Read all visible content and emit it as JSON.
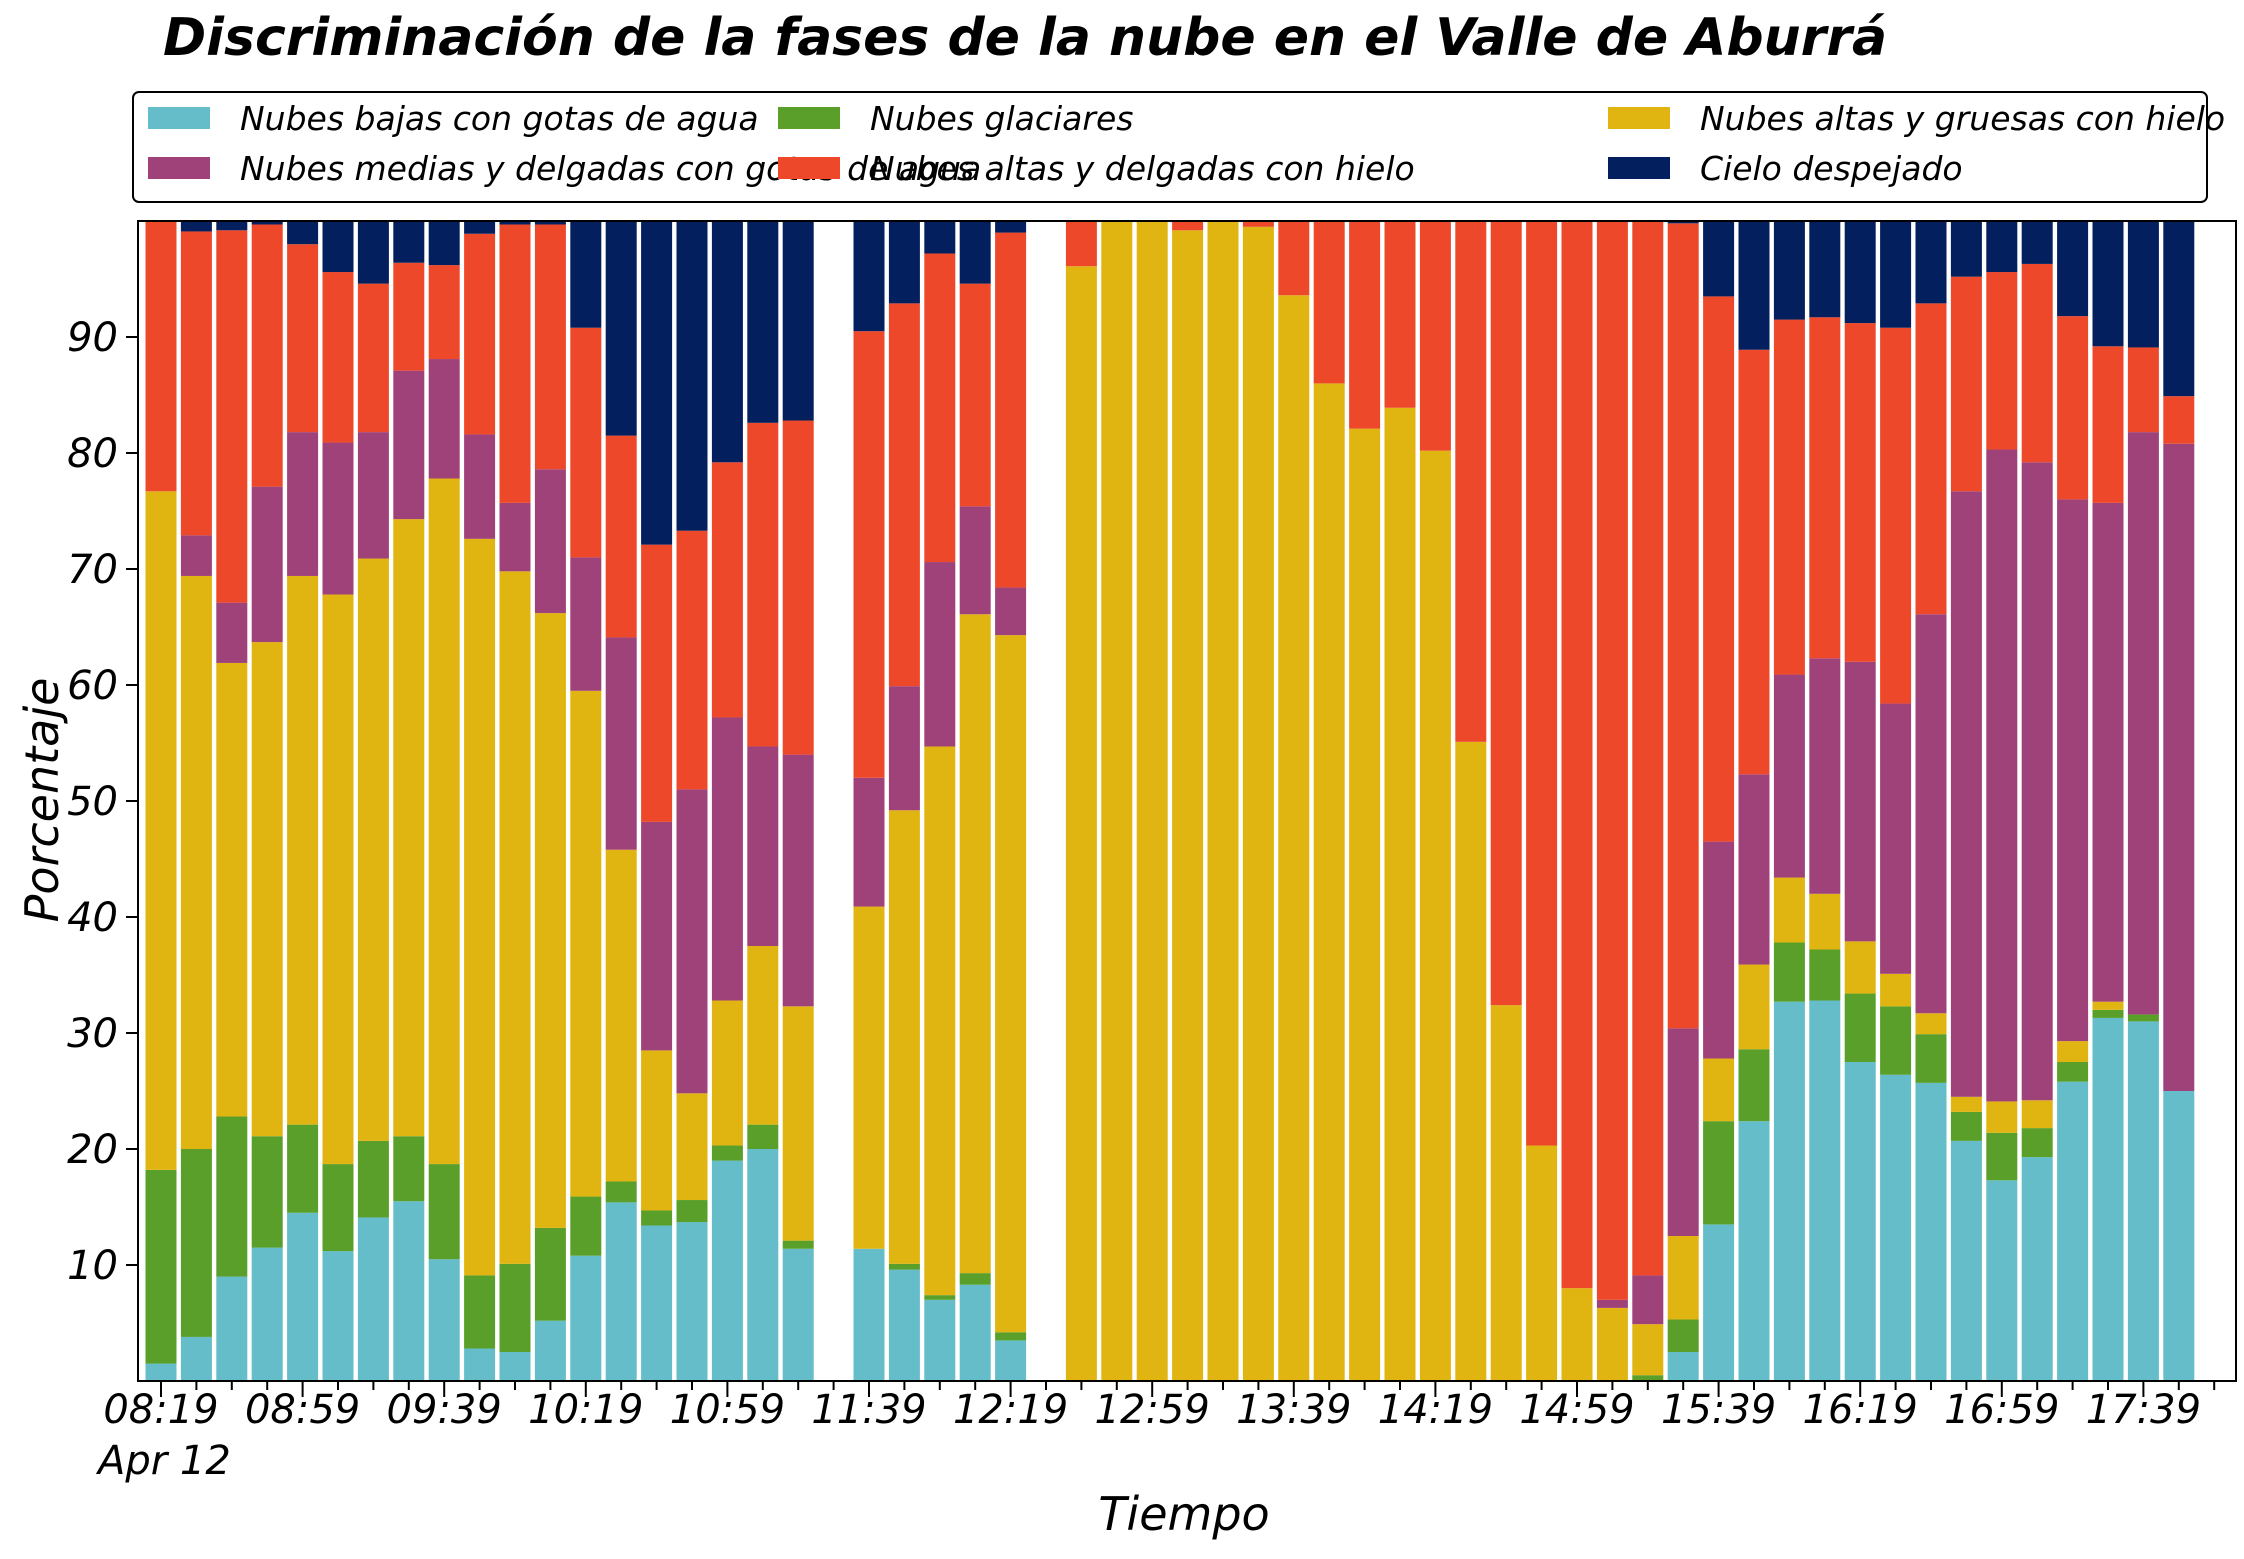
{
  "chart_data": {
    "type": "bar",
    "stacked": true,
    "title": "Discriminación de la fases de la nube en el Valle de Aburrá",
    "xlabel": "Tiempo",
    "ylabel": "Porcentaje",
    "ylim": [
      0,
      100
    ],
    "y_ticks": [
      10,
      20,
      30,
      40,
      50,
      60,
      70,
      80,
      90
    ],
    "x_tick_labels": [
      "08:19",
      "08:59",
      "09:39",
      "10:19",
      "10:59",
      "11:39",
      "12:19",
      "12:59",
      "13:39",
      "14:19",
      "14:59",
      "15:39",
      "16:19",
      "16:59",
      "17:39"
    ],
    "x_date_label": "Apr 12",
    "x_start": "08:19",
    "bin_minutes": 10,
    "legend_position": "top",
    "legend": [
      {
        "name": "Nubes bajas con gotas de agua",
        "color": "#64bdc8"
      },
      {
        "name": "Nubes glaciares",
        "color": "#5a9f2a"
      },
      {
        "name": "Nubes altas y gruesas con hielo",
        "color": "#e1b511"
      },
      {
        "name": "Nubes medias y delgadas con gotas de agua",
        "color": "#a0427a"
      },
      {
        "name": "Nubes altas y delgadas con hielo",
        "color": "#ee482b"
      },
      {
        "name": "Cielo despejado",
        "color": "#031f5e"
      }
    ],
    "stack_order": [
      0,
      1,
      2,
      3,
      4,
      5
    ],
    "bars": [
      {
        "time": "08:19",
        "values": [
          1.5,
          16.7,
          58.5,
          0,
          23.3,
          0
        ]
      },
      {
        "time": "08:29",
        "values": [
          3.8,
          16.2,
          49.4,
          3.5,
          26.2,
          0.9
        ]
      },
      {
        "time": "08:39",
        "values": [
          9.0,
          13.8,
          39.1,
          5.2,
          32.1,
          0.8
        ]
      },
      {
        "time": "08:49",
        "values": [
          11.5,
          9.6,
          42.6,
          13.4,
          22.6,
          0.3
        ]
      },
      {
        "time": "08:59",
        "values": [
          14.5,
          7.6,
          47.3,
          12.4,
          16.2,
          2.0
        ]
      },
      {
        "time": "09:09",
        "values": [
          11.2,
          7.5,
          49.1,
          13.1,
          14.7,
          4.4
        ]
      },
      {
        "time": "09:19",
        "values": [
          14.1,
          6.6,
          50.2,
          10.9,
          12.8,
          5.4
        ]
      },
      {
        "time": "09:29",
        "values": [
          15.5,
          5.6,
          53.2,
          12.8,
          9.3,
          3.6
        ]
      },
      {
        "time": "09:39",
        "values": [
          10.5,
          8.2,
          59.1,
          10.3,
          8.1,
          3.8
        ]
      },
      {
        "time": "09:49",
        "values": [
          2.8,
          6.3,
          63.5,
          9.0,
          17.3,
          1.1
        ]
      },
      {
        "time": "09:59",
        "values": [
          2.5,
          7.6,
          59.7,
          5.9,
          24.0,
          0.3
        ]
      },
      {
        "time": "10:09",
        "values": [
          5.2,
          8.0,
          53.0,
          12.4,
          21.1,
          0.3
        ]
      },
      {
        "time": "10:19",
        "values": [
          10.8,
          5.1,
          43.6,
          11.5,
          19.8,
          9.2
        ]
      },
      {
        "time": "10:29",
        "values": [
          15.4,
          1.8,
          28.6,
          18.3,
          17.4,
          18.5
        ]
      },
      {
        "time": "10:39",
        "values": [
          13.4,
          1.3,
          13.8,
          19.7,
          23.9,
          27.9
        ]
      },
      {
        "time": "10:49",
        "values": [
          13.7,
          1.9,
          9.2,
          26.2,
          22.3,
          26.7
        ]
      },
      {
        "time": "10:59",
        "values": [
          19.0,
          1.3,
          12.5,
          24.4,
          22.0,
          20.8
        ]
      },
      {
        "time": "11:09",
        "values": [
          20.0,
          2.1,
          15.4,
          17.2,
          27.9,
          17.4
        ]
      },
      {
        "time": "11:19",
        "values": [
          11.4,
          0.7,
          20.2,
          21.7,
          28.8,
          17.2
        ]
      },
      {
        "time": "11:29",
        "values": null
      },
      {
        "time": "11:39",
        "values": [
          11.4,
          0,
          29.5,
          11.1,
          38.5,
          9.5
        ]
      },
      {
        "time": "11:49",
        "values": [
          9.6,
          0.5,
          39.1,
          10.7,
          33.0,
          7.1
        ]
      },
      {
        "time": "11:59",
        "values": [
          7.0,
          0.4,
          47.3,
          15.9,
          26.6,
          2.8
        ]
      },
      {
        "time": "12:09",
        "values": [
          8.3,
          1.0,
          56.8,
          9.3,
          19.2,
          5.4
        ]
      },
      {
        "time": "12:19",
        "values": [
          3.5,
          0.7,
          60.1,
          4.1,
          30.6,
          1.0
        ]
      },
      {
        "time": "12:29",
        "values": null
      },
      {
        "time": "12:39",
        "values": [
          0,
          0,
          96.1,
          0,
          3.9,
          0
        ]
      },
      {
        "time": "12:49",
        "values": [
          0,
          0,
          100,
          0,
          0,
          0
        ]
      },
      {
        "time": "12:59",
        "values": [
          0,
          0,
          100,
          0,
          0,
          0
        ]
      },
      {
        "time": "13:09",
        "values": [
          0,
          0,
          99.2,
          0,
          0.8,
          0
        ]
      },
      {
        "time": "13:19",
        "values": [
          0,
          0,
          100,
          0,
          0,
          0
        ]
      },
      {
        "time": "13:29",
        "values": [
          0,
          0,
          99.5,
          0,
          0.5,
          0
        ]
      },
      {
        "time": "13:39",
        "values": [
          0,
          0,
          93.6,
          0,
          6.4,
          0
        ]
      },
      {
        "time": "13:49",
        "values": [
          0,
          0,
          86.0,
          0,
          14.0,
          0
        ]
      },
      {
        "time": "13:59",
        "values": [
          0,
          0,
          82.1,
          0,
          17.9,
          0
        ]
      },
      {
        "time": "14:09",
        "values": [
          0,
          0,
          83.9,
          0,
          16.1,
          0
        ]
      },
      {
        "time": "14:19",
        "values": [
          0,
          0,
          80.2,
          0,
          19.8,
          0
        ]
      },
      {
        "time": "14:29",
        "values": [
          0,
          0,
          55.1,
          0,
          44.9,
          0
        ]
      },
      {
        "time": "14:39",
        "values": [
          0,
          0,
          32.4,
          0,
          67.6,
          0
        ]
      },
      {
        "time": "14:49",
        "values": [
          0,
          0,
          20.3,
          0,
          79.7,
          0
        ]
      },
      {
        "time": "14:59",
        "values": [
          0,
          0,
          8.0,
          0,
          92.0,
          0
        ]
      },
      {
        "time": "15:09",
        "values": [
          0,
          0,
          6.3,
          0.7,
          93.0,
          0
        ]
      },
      {
        "time": "15:19",
        "values": [
          0,
          0.5,
          4.4,
          4.2,
          90.9,
          0
        ]
      },
      {
        "time": "15:29",
        "values": [
          2.5,
          2.8,
          7.2,
          17.9,
          69.4,
          0.2
        ]
      },
      {
        "time": "15:39",
        "values": [
          13.5,
          8.9,
          5.4,
          18.7,
          47.0,
          6.5
        ]
      },
      {
        "time": "15:49",
        "values": [
          22.4,
          6.2,
          7.3,
          16.4,
          36.6,
          11.1
        ]
      },
      {
        "time": "15:59",
        "values": [
          32.7,
          5.1,
          5.6,
          17.5,
          30.6,
          8.5
        ]
      },
      {
        "time": "16:09",
        "values": [
          32.8,
          4.4,
          4.8,
          20.3,
          29.4,
          8.3
        ]
      },
      {
        "time": "16:19",
        "values": [
          27.5,
          5.9,
          4.5,
          24.1,
          29.2,
          8.8
        ]
      },
      {
        "time": "16:29",
        "values": [
          26.4,
          5.9,
          2.8,
          23.3,
          32.4,
          9.2
        ]
      },
      {
        "time": "16:39",
        "values": [
          25.7,
          4.2,
          1.8,
          34.4,
          26.8,
          7.1
        ]
      },
      {
        "time": "16:49",
        "values": [
          20.7,
          2.5,
          1.3,
          52.2,
          18.5,
          4.8
        ]
      },
      {
        "time": "16:59",
        "values": [
          17.3,
          4.1,
          2.7,
          56.2,
          15.3,
          4.4
        ]
      },
      {
        "time": "17:09",
        "values": [
          19.3,
          2.5,
          2.4,
          55.0,
          17.1,
          3.7
        ]
      },
      {
        "time": "17:19",
        "values": [
          25.8,
          1.7,
          1.8,
          46.7,
          15.8,
          8.2
        ]
      },
      {
        "time": "17:29",
        "values": [
          31.3,
          0.7,
          0.7,
          43.0,
          13.5,
          10.8
        ]
      },
      {
        "time": "17:39",
        "values": [
          31.0,
          0.6,
          0,
          50.2,
          7.3,
          10.9
        ]
      },
      {
        "time": "17:49",
        "values": [
          25.0,
          0,
          0,
          55.8,
          4.1,
          15.1
        ]
      }
    ]
  }
}
